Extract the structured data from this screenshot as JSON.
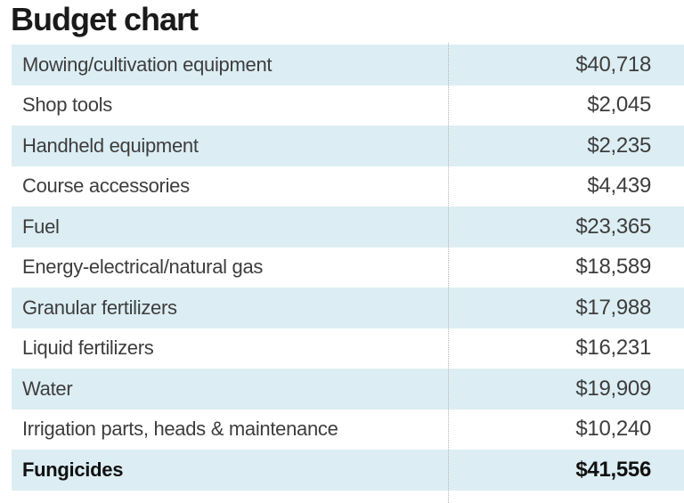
{
  "title": "Budget chart",
  "table": {
    "rows": [
      {
        "label": "Mowing/cultivation equipment",
        "value": "$40,718",
        "bold": false
      },
      {
        "label": "Shop tools",
        "value": "$2,045",
        "bold": false
      },
      {
        "label": "Handheld equipment",
        "value": "$2,235",
        "bold": false
      },
      {
        "label": "Course accessories",
        "value": "$4,439",
        "bold": false
      },
      {
        "label": "Fuel",
        "value": "$23,365",
        "bold": false
      },
      {
        "label": "Energy-electrical/natural gas",
        "value": "$18,589",
        "bold": false
      },
      {
        "label": "Granular fertilizers",
        "value": "$17,988",
        "bold": false
      },
      {
        "label": "Liquid fertilizers",
        "value": "$16,231",
        "bold": false
      },
      {
        "label": "Water",
        "value": "$19,909",
        "bold": false
      },
      {
        "label": "Irrigation parts, heads & maintenance",
        "value": "$10,240",
        "bold": false
      },
      {
        "label": "Fungicides",
        "value": "$41,556",
        "bold": true
      }
    ]
  },
  "colors": {
    "row_stripe": "#dceef4",
    "title_text": "#1a1a1a",
    "row_text": "#3d3d3d",
    "bold_text": "#111111",
    "divider": "#b5b5b5",
    "background": "#ffffff"
  },
  "chart_data": {
    "type": "table",
    "title": "Budget chart",
    "categories": [
      "Mowing/cultivation equipment",
      "Shop tools",
      "Handheld equipment",
      "Course accessories",
      "Fuel",
      "Energy-electrical/natural gas",
      "Granular fertilizers",
      "Liquid fertilizers",
      "Water",
      "Irrigation parts, heads & maintenance",
      "Fungicides"
    ],
    "values": [
      40718,
      2045,
      2235,
      4439,
      23365,
      18589,
      17988,
      16231,
      19909,
      10240,
      41556
    ],
    "value_format": "USD currency with thousands separator",
    "emphasized_row": "Fungicides",
    "layout": {
      "stripes": "alternating pale-blue/white starting with blue",
      "value_alignment": "right",
      "column_divider": "vertical dotted line between label and value columns",
      "legend": "none",
      "grid": "off"
    }
  }
}
